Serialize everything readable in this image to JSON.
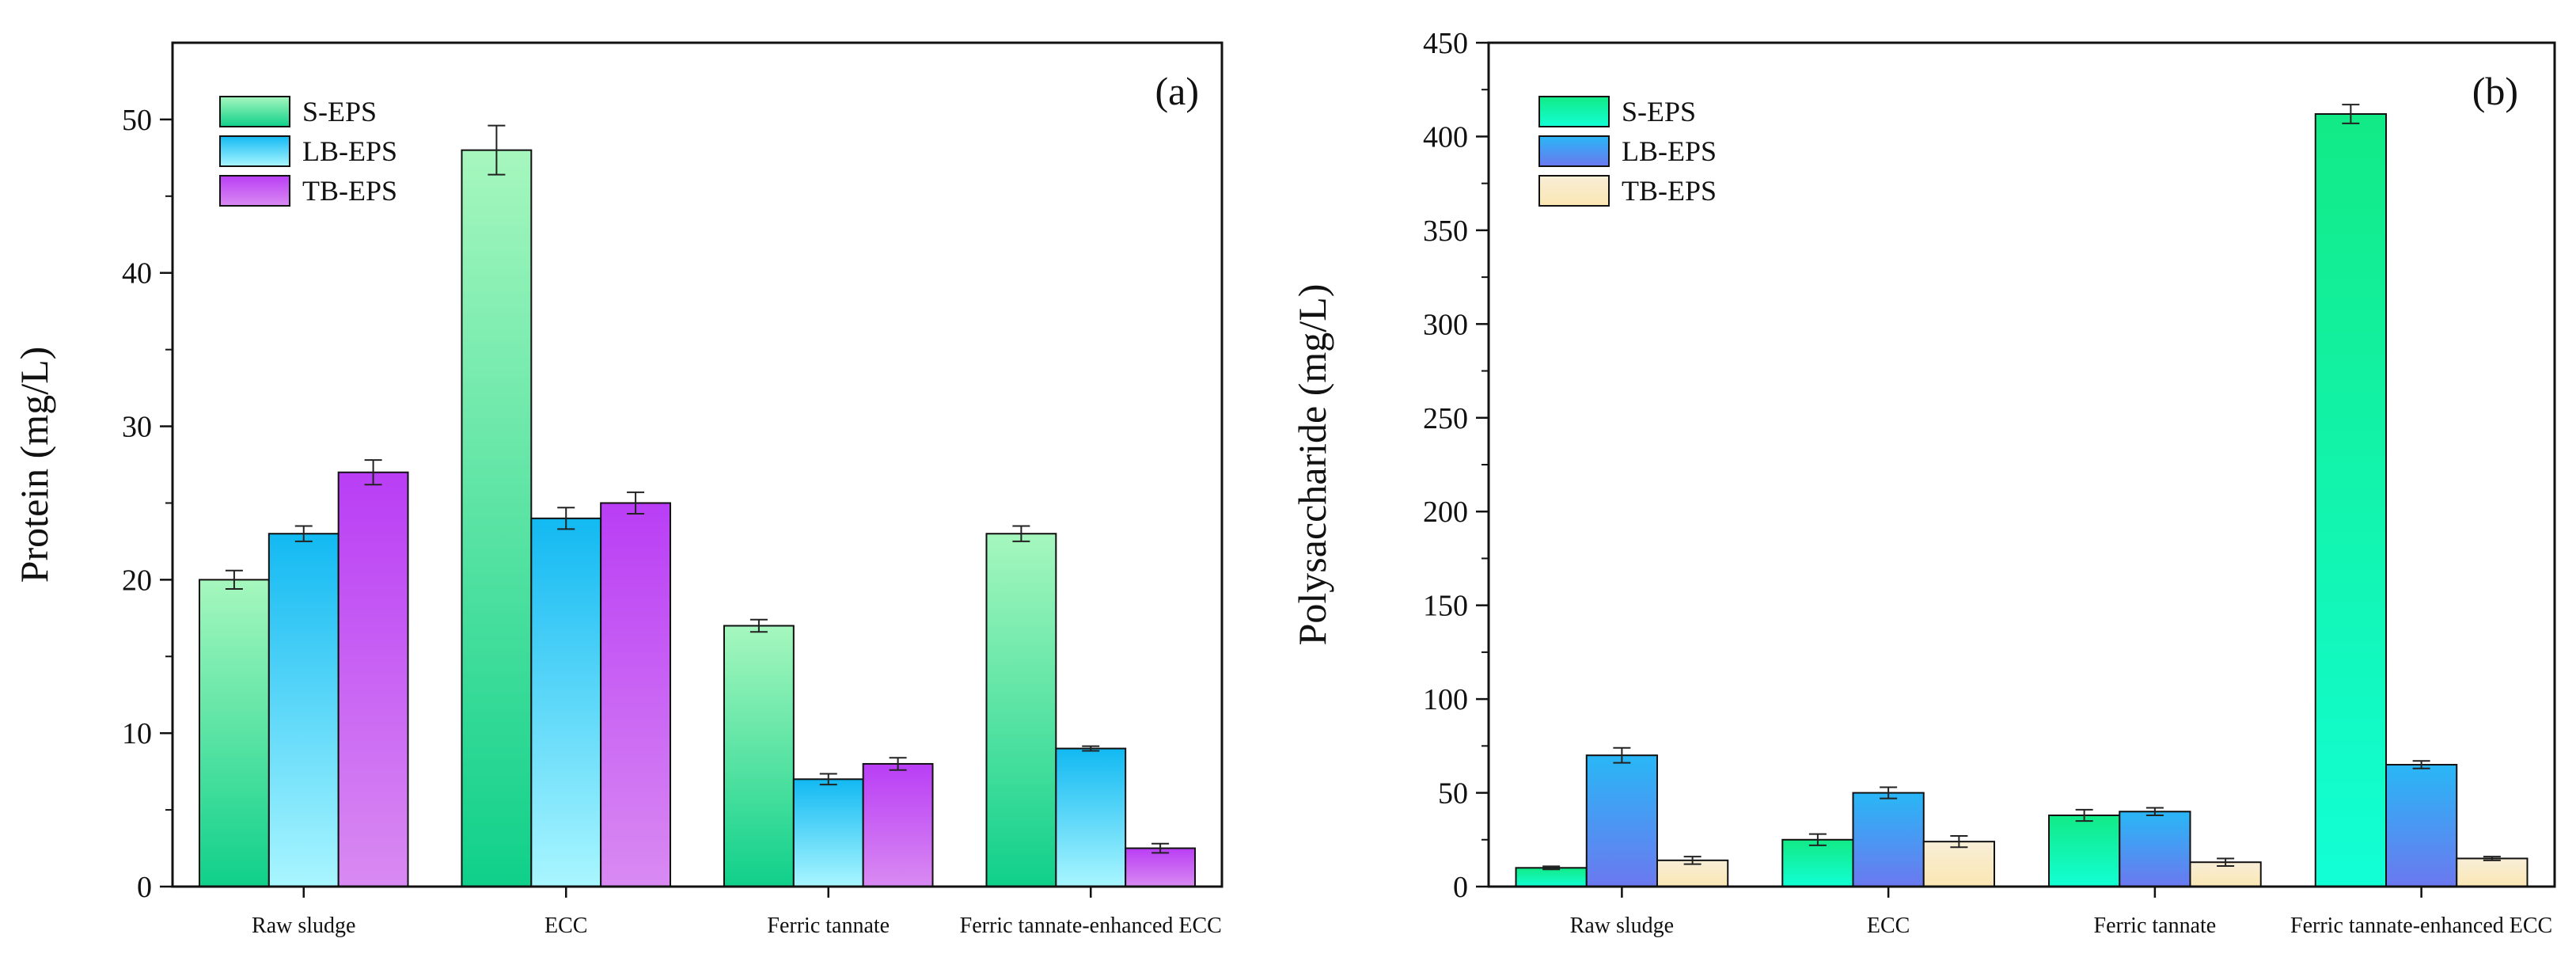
{
  "chart_data": [
    {
      "type": "bar",
      "panel_label": "(a)",
      "ylabel": "Protein (mg/L)",
      "xlabel": "",
      "ylim": [
        0,
        55
      ],
      "yticks": [
        0,
        10,
        20,
        30,
        40,
        50
      ],
      "legend_position": "top-left",
      "categories": [
        "Raw sludge",
        "ECC",
        "Ferric tannate",
        "Ferric tannate-enhanced ECC"
      ],
      "series": [
        {
          "name": "S-EPS",
          "values": [
            20,
            48,
            17,
            23
          ],
          "errors": [
            0.6,
            1.6,
            0.4,
            0.5
          ],
          "color_top": "#a6f7be",
          "color_bottom": "#0fd08a"
        },
        {
          "name": "LB-EPS",
          "values": [
            23,
            24,
            7,
            9
          ],
          "errors": [
            0.5,
            0.7,
            0.35,
            0.15
          ],
          "color_top": "#12b9f2",
          "color_bottom": "#a9f6ff"
        },
        {
          "name": "TB-EPS",
          "values": [
            27,
            25,
            8,
            2.5
          ],
          "errors": [
            0.8,
            0.7,
            0.4,
            0.3
          ],
          "color_top": "#b93ef5",
          "color_bottom": "#d98af2"
        }
      ]
    },
    {
      "type": "bar",
      "panel_label": "(b)",
      "ylabel": "Polysaccharide (mg/L)",
      "xlabel": "",
      "ylim": [
        0,
        450
      ],
      "yticks": [
        0,
        50,
        100,
        150,
        200,
        250,
        300,
        350,
        400,
        450
      ],
      "legend_position": "top-left",
      "categories": [
        "Raw sludge",
        "ECC",
        "Ferric tannate",
        "Ferric tannate-enhanced ECC"
      ],
      "series": [
        {
          "name": "S-EPS",
          "values": [
            10,
            25,
            38,
            412
          ],
          "errors": [
            0.8,
            3,
            3,
            5
          ],
          "color_top": "#12ea86",
          "color_bottom": "#12ffd6"
        },
        {
          "name": "LB-EPS",
          "values": [
            70,
            50,
            40,
            65
          ],
          "errors": [
            4,
            3,
            2,
            2
          ],
          "color_top": "#29b7f6",
          "color_bottom": "#6b78ef"
        },
        {
          "name": "TB-EPS",
          "values": [
            14,
            24,
            13,
            15
          ],
          "errors": [
            2,
            3,
            2,
            1
          ],
          "color_top": "#f8eed7",
          "color_bottom": "#fbe7b3"
        }
      ]
    }
  ]
}
